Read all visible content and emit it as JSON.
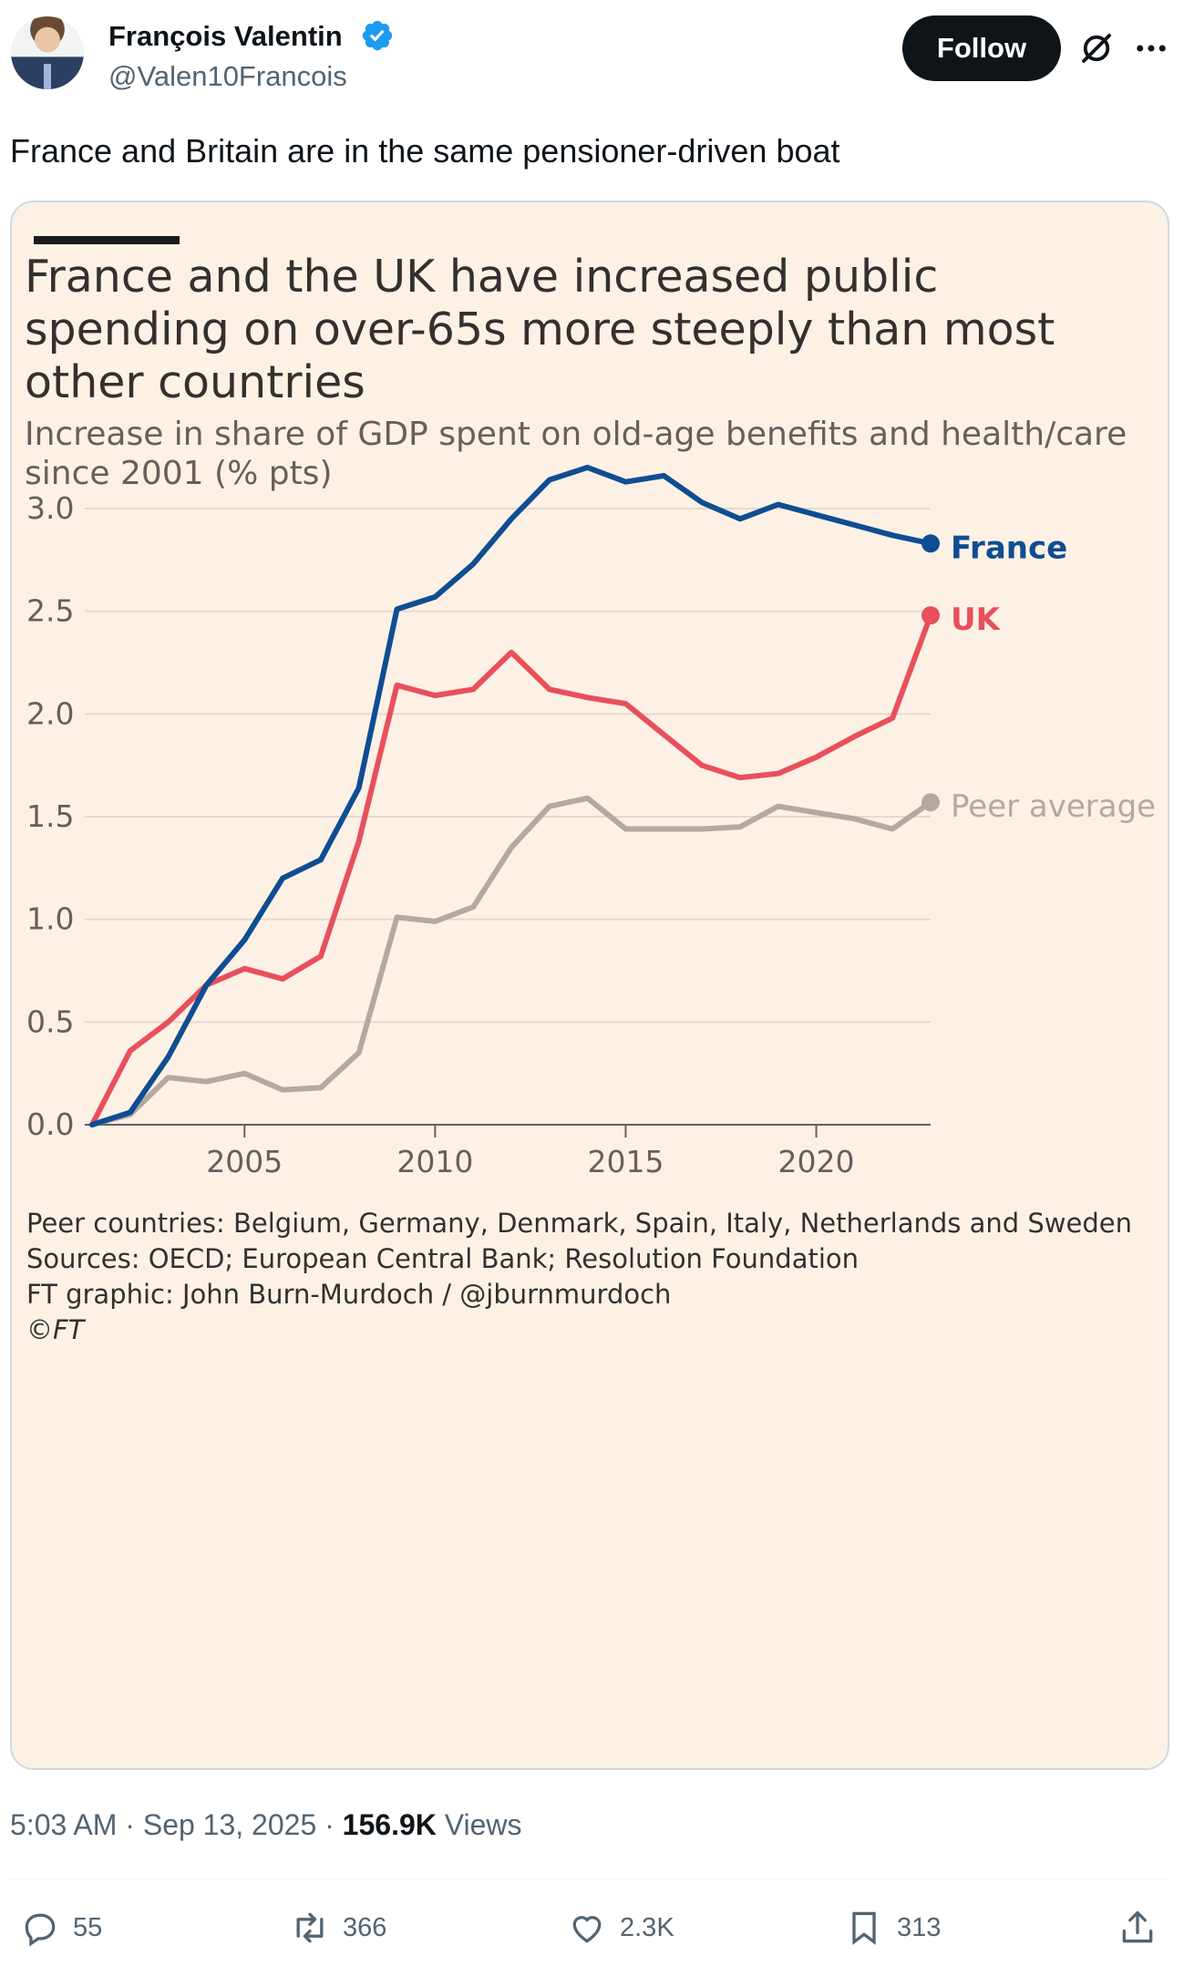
{
  "author": {
    "name": "François Valentin",
    "handle": "@Valen10Francois",
    "verified_color": "#1d9bf0"
  },
  "header": {
    "follow_label": "Follow",
    "grok_icon": "grok-icon",
    "more_icon": "more-icon"
  },
  "tweet": {
    "text": "France and Britain are in the same pensioner-driven boat"
  },
  "chart": {
    "title_lines": [
      "France and the UK have increased public",
      "spending on over-65s more steeply than most",
      "other countries"
    ],
    "subtitle_lines": [
      "Increase in share of GDP spent on old-age benefits and health/care",
      "since 2001 (% pts)"
    ],
    "footer_lines": [
      "Peer countries: Belgium, Germany, Denmark, Spain, Italy, Netherlands and Sweden",
      "Sources: OECD; European Central Bank; Resolution Foundation",
      "FT graphic: John Burn-Murdoch / @jburnmurdoch",
      "©FT"
    ]
  },
  "chart_data": {
    "type": "line",
    "x": [
      2001,
      2002,
      2003,
      2004,
      2005,
      2006,
      2007,
      2008,
      2009,
      2010,
      2011,
      2012,
      2013,
      2014,
      2015,
      2016,
      2017,
      2018,
      2019,
      2020,
      2021,
      2022,
      2023
    ],
    "series": [
      {
        "name": "France",
        "color": "#0f4d92",
        "values": [
          0.0,
          0.06,
          0.33,
          0.68,
          0.9,
          1.2,
          1.29,
          1.64,
          2.51,
          2.57,
          2.73,
          2.95,
          3.14,
          3.2,
          3.13,
          3.16,
          3.03,
          2.95,
          3.02,
          2.97,
          2.92,
          2.87,
          2.83
        ]
      },
      {
        "name": "UK",
        "color": "#e8505b",
        "values": [
          0.0,
          0.36,
          0.5,
          0.68,
          0.76,
          0.71,
          0.82,
          1.38,
          2.14,
          2.09,
          2.12,
          2.3,
          2.12,
          2.08,
          2.05,
          1.9,
          1.75,
          1.69,
          1.71,
          1.79,
          1.89,
          1.98,
          2.48
        ]
      },
      {
        "name": "Peer average",
        "color": "#b3a9a1",
        "values": [
          0.0,
          0.05,
          0.23,
          0.21,
          0.25,
          0.17,
          0.18,
          0.35,
          1.01,
          0.99,
          1.06,
          1.35,
          1.55,
          1.59,
          1.44,
          1.44,
          1.44,
          1.45,
          1.55,
          1.52,
          1.49,
          1.44,
          1.57
        ]
      }
    ],
    "y_ticks": [
      "0.0",
      "0.5",
      "1.0",
      "1.5",
      "2.0",
      "2.5",
      "3.0"
    ],
    "x_ticks": [
      "2005",
      "2010",
      "2015",
      "2020"
    ],
    "x_tick_values": [
      2005,
      2010,
      2015,
      2020
    ],
    "xlim": [
      2001,
      2023
    ],
    "ylim": [
      0,
      3.0
    ],
    "grid": true
  },
  "meta": {
    "time": "5:03 AM",
    "date": "Sep 13, 2025",
    "views_count": "156.9K",
    "views_label": "Views"
  },
  "actions": {
    "replies": "55",
    "reposts": "366",
    "likes": "2.3K",
    "bookmarks": "313"
  }
}
